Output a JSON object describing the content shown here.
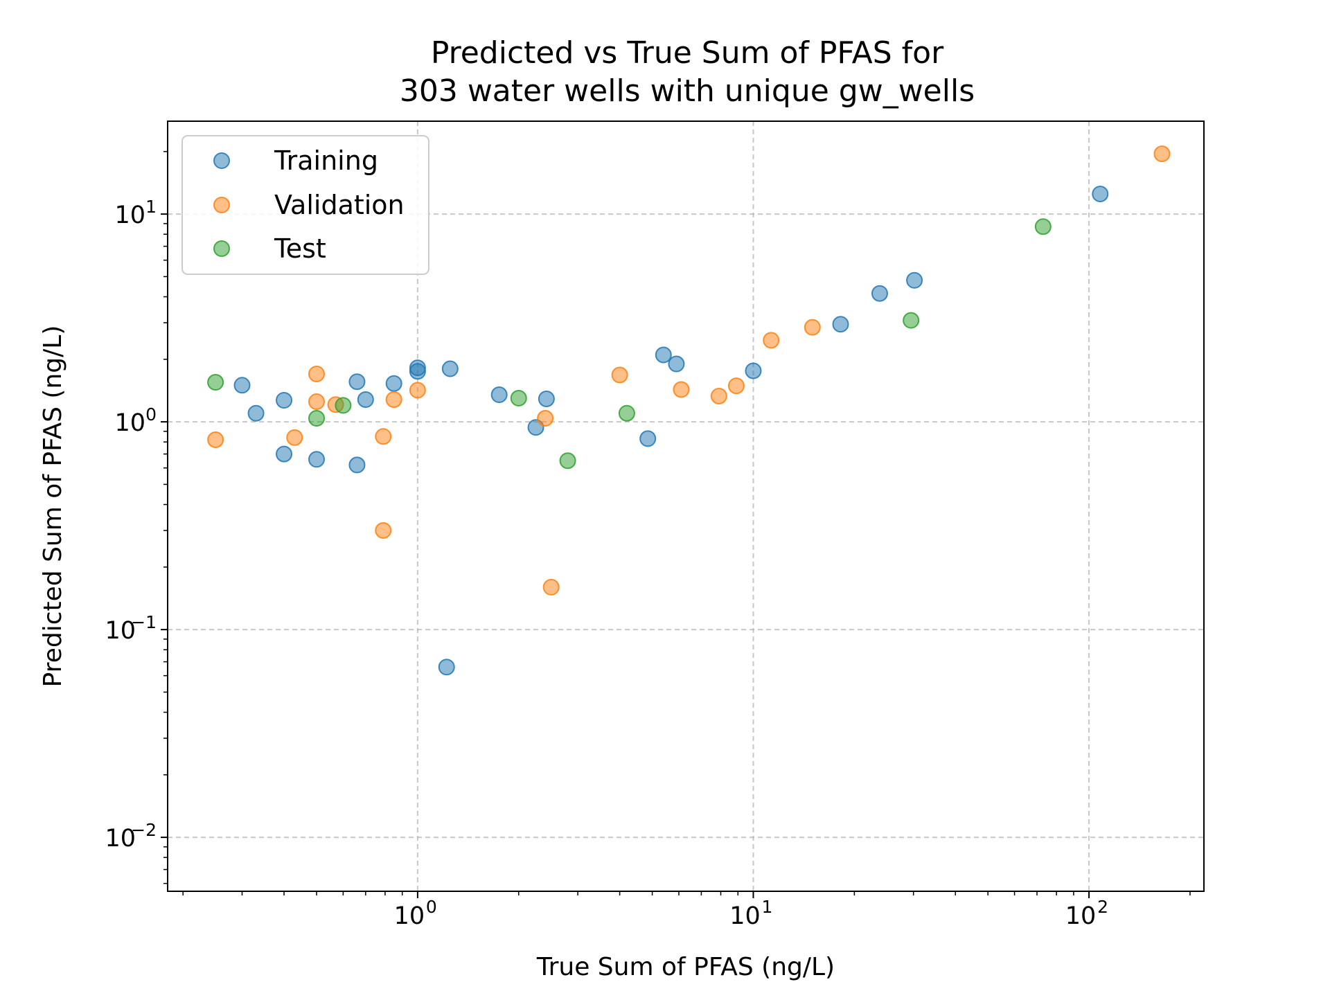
{
  "chart_data": {
    "type": "scatter",
    "title": [
      "Predicted vs True Sum of PFAS for",
      "303 water wells with unique gw_wells"
    ],
    "xlabel": "True Sum of PFAS (ng/L)",
    "ylabel": "Predicted Sum of PFAS (ng/L)",
    "xscale": "log",
    "yscale": "log",
    "xlim": [
      0.18,
      220
    ],
    "ylim": [
      0.0055,
      28
    ],
    "xticks": [
      {
        "base": "10",
        "exp": "0",
        "value": 1
      },
      {
        "base": "10",
        "exp": "1",
        "value": 10
      },
      {
        "base": "10",
        "exp": "2",
        "value": 100
      }
    ],
    "yticks": [
      {
        "base": "10",
        "exp": "−2",
        "value": 0.01
      },
      {
        "base": "10",
        "exp": "−1",
        "value": 0.1
      },
      {
        "base": "10",
        "exp": "0",
        "value": 1
      },
      {
        "base": "10",
        "exp": "1",
        "value": 10
      }
    ],
    "grid": true,
    "legend_position": "upper-left",
    "series": [
      {
        "name": "Training",
        "color": "#1f77b4",
        "points": [
          [
            0.3,
            1.5
          ],
          [
            0.33,
            1.1
          ],
          [
            0.4,
            1.27
          ],
          [
            0.4,
            0.7
          ],
          [
            0.5,
            0.66
          ],
          [
            0.66,
            1.56
          ],
          [
            0.66,
            0.62
          ],
          [
            0.7,
            1.28
          ],
          [
            0.85,
            1.53
          ],
          [
            1.0,
            1.82
          ],
          [
            1.0,
            1.75
          ],
          [
            1.25,
            1.8
          ],
          [
            1.22,
            0.066
          ],
          [
            1.75,
            1.35
          ],
          [
            2.25,
            0.94
          ],
          [
            2.42,
            1.29
          ],
          [
            4.85,
            0.83
          ],
          [
            5.4,
            2.1
          ],
          [
            5.9,
            1.9
          ],
          [
            10.0,
            1.76
          ],
          [
            18.2,
            2.95
          ],
          [
            23.8,
            4.15
          ],
          [
            30.2,
            4.8
          ],
          [
            108,
            12.5
          ]
        ]
      },
      {
        "name": "Validation",
        "color": "#ff7f0e",
        "points": [
          [
            0.25,
            0.82
          ],
          [
            0.43,
            0.84
          ],
          [
            0.5,
            1.7
          ],
          [
            0.5,
            1.25
          ],
          [
            0.57,
            1.21
          ],
          [
            0.79,
            0.85
          ],
          [
            0.79,
            0.3
          ],
          [
            0.85,
            1.28
          ],
          [
            1.0,
            1.42
          ],
          [
            2.4,
            1.04
          ],
          [
            2.5,
            0.16
          ],
          [
            4.0,
            1.68
          ],
          [
            6.1,
            1.43
          ],
          [
            7.9,
            1.33
          ],
          [
            8.9,
            1.49
          ],
          [
            11.3,
            2.47
          ],
          [
            15.0,
            2.85
          ],
          [
            165,
            19.5
          ]
        ]
      },
      {
        "name": "Test",
        "color": "#2ca02c",
        "points": [
          [
            0.25,
            1.55
          ],
          [
            0.5,
            1.04
          ],
          [
            0.6,
            1.2
          ],
          [
            2.0,
            1.3
          ],
          [
            2.8,
            0.65
          ],
          [
            4.2,
            1.1
          ],
          [
            29.5,
            3.08
          ],
          [
            73,
            8.7
          ]
        ]
      }
    ]
  }
}
